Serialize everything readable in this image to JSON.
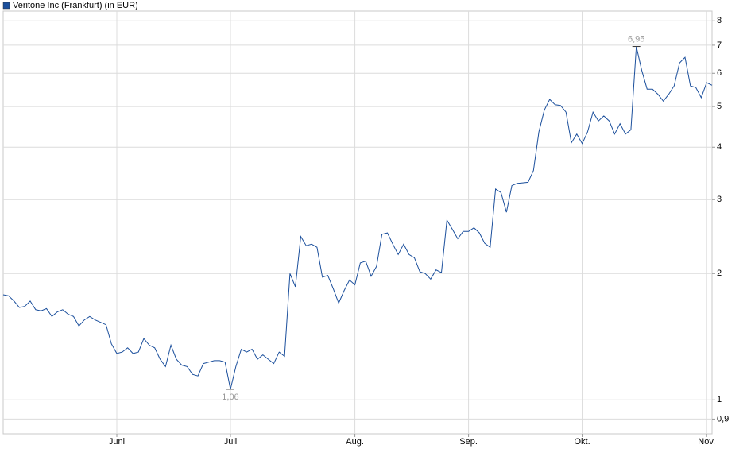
{
  "chart_data": {
    "type": "line",
    "categories": [
      null,
      null,
      null,
      null,
      null,
      null,
      null,
      null,
      null,
      null,
      null,
      null,
      null,
      null,
      null,
      null,
      null,
      null,
      null,
      null,
      null,
      "Juni",
      null,
      null,
      null,
      null,
      null,
      null,
      null,
      null,
      null,
      null,
      null,
      null,
      null,
      null,
      null,
      null,
      null,
      null,
      null,
      null,
      "Juli",
      null,
      null,
      null,
      null,
      null,
      null,
      null,
      null,
      null,
      null,
      null,
      null,
      null,
      null,
      null,
      null,
      null,
      null,
      null,
      null,
      null,
      null,
      "Aug.",
      null,
      null,
      null,
      null,
      null,
      null,
      null,
      null,
      null,
      null,
      null,
      null,
      null,
      null,
      null,
      null,
      null,
      null,
      null,
      null,
      "Sep.",
      null,
      null,
      null,
      null,
      null,
      null,
      null,
      null,
      null,
      null,
      null,
      null,
      null,
      null,
      null,
      null,
      null,
      null,
      null,
      null,
      "Okt.",
      null,
      null,
      null,
      null,
      null,
      null,
      null,
      null,
      null,
      null,
      null,
      null,
      null,
      null,
      null,
      null,
      null,
      null,
      null,
      null,
      null,
      null,
      "Nov.",
      null
    ],
    "series": [
      {
        "name": "Veritone Inc (Frankfurt) (in EUR)",
        "color": "#1b4f9c",
        "values": [
          1.78,
          1.77,
          1.72,
          1.66,
          1.67,
          1.72,
          1.64,
          1.63,
          1.65,
          1.58,
          1.62,
          1.64,
          1.6,
          1.58,
          1.5,
          1.55,
          1.58,
          1.55,
          1.53,
          1.51,
          1.36,
          1.29,
          1.3,
          1.33,
          1.29,
          1.3,
          1.4,
          1.35,
          1.33,
          1.25,
          1.2,
          1.35,
          1.25,
          1.21,
          1.2,
          1.15,
          1.14,
          1.22,
          1.23,
          1.24,
          1.24,
          1.23,
          1.06,
          1.2,
          1.32,
          1.3,
          1.32,
          1.25,
          1.28,
          1.25,
          1.22,
          1.3,
          1.27,
          2.0,
          1.86,
          2.45,
          2.33,
          2.35,
          2.31,
          1.96,
          1.98,
          1.84,
          1.7,
          1.82,
          1.93,
          1.88,
          2.12,
          2.14,
          1.97,
          2.08,
          2.48,
          2.5,
          2.35,
          2.22,
          2.35,
          2.22,
          2.18,
          2.02,
          2.0,
          1.94,
          2.04,
          2.01,
          2.68,
          2.55,
          2.42,
          2.52,
          2.52,
          2.57,
          2.5,
          2.36,
          2.31,
          3.18,
          3.12,
          2.8,
          3.24,
          3.28,
          3.29,
          3.3,
          3.52,
          4.35,
          4.9,
          5.2,
          5.05,
          5.03,
          4.85,
          4.1,
          4.3,
          4.08,
          4.35,
          4.85,
          4.62,
          4.75,
          4.62,
          4.3,
          4.55,
          4.3,
          4.4,
          6.95,
          6.1,
          5.5,
          5.5,
          5.35,
          5.15,
          5.35,
          5.6,
          6.35,
          6.55,
          5.6,
          5.55,
          5.25,
          5.7,
          5.62
        ],
        "value_labels": [
          null,
          null,
          null,
          null,
          null,
          null,
          null,
          null,
          null,
          null,
          null,
          null,
          null,
          null,
          null,
          null,
          null,
          null,
          null,
          null,
          null,
          null,
          null,
          null,
          null,
          null,
          null,
          null,
          null,
          null,
          null,
          null,
          null,
          null,
          null,
          null,
          null,
          null,
          null,
          null,
          null,
          null,
          "1,06",
          null,
          null,
          null,
          null,
          null,
          null,
          null,
          null,
          null,
          null,
          null,
          null,
          null,
          null,
          null,
          null,
          null,
          null,
          null,
          null,
          null,
          null,
          null,
          null,
          null,
          null,
          null,
          null,
          null,
          null,
          null,
          null,
          null,
          null,
          null,
          null,
          null,
          null,
          null,
          null,
          null,
          null,
          null,
          null,
          null,
          null,
          null,
          null,
          null,
          null,
          null,
          null,
          null,
          null,
          null,
          null,
          null,
          null,
          null,
          null,
          null,
          null,
          null,
          null,
          null,
          null,
          null,
          null,
          null,
          null,
          null,
          null,
          null,
          null,
          "6,95",
          null,
          null,
          null,
          null,
          null,
          null,
          null,
          null,
          null,
          null,
          null,
          null,
          null,
          null
        ]
      }
    ],
    "ylim": [
      0.83,
      8.44
    ],
    "log_y": true,
    "yticks": [
      {
        "value": 0.9,
        "label": "0,9"
      },
      1,
      2,
      3,
      4,
      5,
      6,
      7,
      8
    ],
    "grid": true,
    "legend": "top-left"
  }
}
